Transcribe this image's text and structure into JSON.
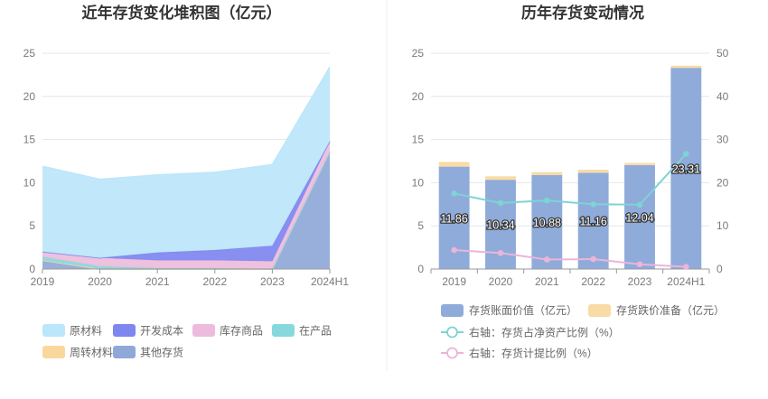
{
  "chart_data": [
    {
      "type": "area",
      "stacked": true,
      "title": "近年存货变化堆积图（亿元）",
      "categories": [
        "2019",
        "2020",
        "2021",
        "2022",
        "2023",
        "2024H1"
      ],
      "ylim": [
        0,
        25
      ],
      "yticks": [
        "0",
        "5",
        "10",
        "15",
        "20",
        "25"
      ],
      "grid": true,
      "legend_position": "bottom",
      "series": [
        {
          "name": "其他存货",
          "color": "#8FA8D8",
          "values": [
            1.0,
            0.0,
            0.0,
            0.0,
            0.0,
            13.6
          ]
        },
        {
          "name": "周转材料",
          "color": "#FAD89C",
          "values": [
            0.0,
            0.0,
            0.0,
            0.0,
            0.0,
            0.0
          ]
        },
        {
          "name": "在产品",
          "color": "#87D8DC",
          "values": [
            0.4,
            0.3,
            0.1,
            0.1,
            0.0,
            0.0
          ]
        },
        {
          "name": "库存商品",
          "color": "#EDBCDC",
          "values": [
            0.6,
            1.0,
            0.9,
            0.9,
            0.9,
            1.2
          ]
        },
        {
          "name": "开发成本",
          "color": "#7E86F0",
          "values": [
            0.0,
            0.0,
            0.9,
            1.2,
            1.8,
            0.0
          ]
        },
        {
          "name": "原材料",
          "color": "#BCE6FA",
          "values": [
            9.9,
            9.1,
            9.0,
            9.0,
            9.4,
            8.6
          ]
        }
      ],
      "legend_order": [
        "原材料",
        "开发成本",
        "库存商品",
        "在产品",
        "周转材料",
        "其他存货"
      ]
    },
    {
      "type": "bar",
      "title": "历年存货变动情况",
      "categories": [
        "2019",
        "2020",
        "2021",
        "2022",
        "2023",
        "2024H1"
      ],
      "ylim": [
        0,
        25
      ],
      "yticks": [
        "0",
        "5",
        "10",
        "15",
        "20",
        "25"
      ],
      "y2lim": [
        0,
        50
      ],
      "y2ticks": [
        "0",
        "10",
        "20",
        "30",
        "40",
        "50"
      ],
      "grid": true,
      "legend_position": "bottom",
      "series": [
        {
          "name": "存货账面价值（亿元）",
          "axis": "left",
          "kind": "bar",
          "color": "#8FABDA",
          "values": [
            11.86,
            10.34,
            10.88,
            11.16,
            12.04,
            23.31
          ],
          "labels": [
            "11.86",
            "10.34",
            "10.88",
            "11.16",
            "12.04",
            "23.31"
          ]
        },
        {
          "name": "存货跌价准备（亿元）",
          "axis": "left",
          "kind": "bar",
          "color": "#F9DBA5",
          "values": [
            0.55,
            0.4,
            0.35,
            0.35,
            0.25,
            0.25
          ]
        },
        {
          "name": "右轴：存货占净资产比例（%）",
          "axis": "right",
          "kind": "line",
          "color": "#7ED3D3",
          "values": [
            17.5,
            15.3,
            15.9,
            15.0,
            14.9,
            26.7
          ]
        },
        {
          "name": "右轴：存货计提比例（%）",
          "axis": "right",
          "kind": "line",
          "color": "#EBB5D8",
          "values": [
            4.4,
            3.7,
            2.2,
            2.3,
            1.1,
            0.5
          ]
        }
      ]
    }
  ]
}
